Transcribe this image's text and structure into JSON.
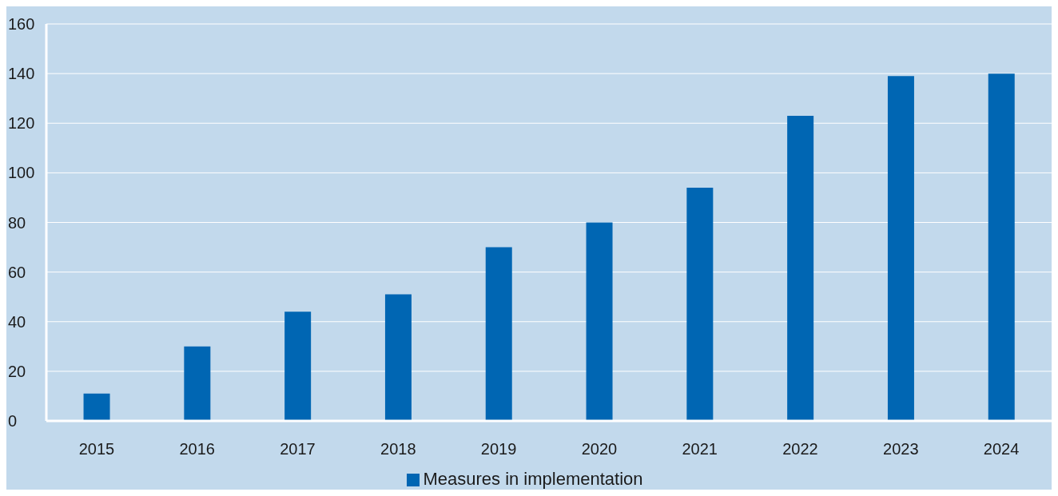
{
  "chart_data": {
    "type": "bar",
    "categories": [
      "2015",
      "2016",
      "2017",
      "2018",
      "2019",
      "2020",
      "2021",
      "2022",
      "2023",
      "2024"
    ],
    "series": [
      {
        "name": "Measures in implementation",
        "color": "#0066b3",
        "values": [
          11,
          30,
          44,
          51,
          70,
          80,
          94,
          123,
          139,
          140
        ]
      }
    ],
    "ylim": [
      0,
      160
    ],
    "yticks": [
      0,
      20,
      40,
      60,
      80,
      100,
      120,
      140,
      160
    ],
    "grid": "y",
    "legend": "bottom"
  }
}
